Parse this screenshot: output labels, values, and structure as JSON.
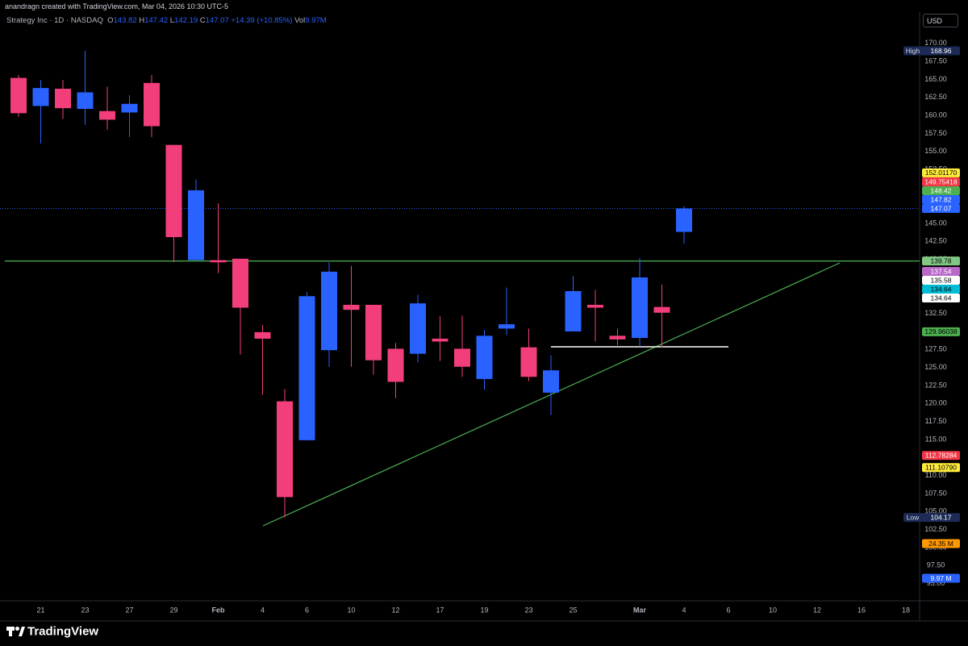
{
  "header": {
    "credit": "anandragn created with TradingView.com, Mar 04, 2026 10:30 UTC-5"
  },
  "currency": "USD",
  "brand": "TradingView",
  "legend": {
    "symbol": "Strategy Inc · 1D · NASDAQ",
    "open": "O",
    "high": "H",
    "low": "L",
    "close": "C",
    "change": "+14.39 (+10.85%)",
    "volume": "Vol",
    "volume_value": "9.97M"
  },
  "chart_data": {
    "type": "candlestick",
    "up_color": "#2962ff",
    "down_color": "#f23f7c",
    "high_label": "High",
    "low_label": "Low",
    "categories": [
      null,
      "21",
      null,
      "23",
      null,
      "27",
      null,
      "29",
      null,
      "Feb",
      null,
      "4",
      null,
      "6",
      null,
      "10",
      null,
      "12",
      null,
      "17",
      null,
      "19",
      null,
      "23",
      null,
      "25",
      null,
      null,
      "Mar",
      null,
      "4",
      null,
      "6",
      null,
      "10",
      null,
      "12",
      null,
      "16",
      null,
      "18"
    ],
    "open": [
      165.2,
      161.3,
      163.7,
      160.9,
      160.6,
      160.4,
      164.5,
      155.9,
      139.9,
      139.9,
      140.1,
      129.9,
      120.3,
      114.9,
      127.4,
      133.7,
      133.7,
      127.6,
      126.9,
      129.0,
      127.6,
      123.4,
      130.4,
      127.8,
      121.5,
      130.0,
      133.7,
      129.4,
      129.1,
      133.4,
      143.82,
      null,
      null,
      null,
      null,
      null,
      null,
      null,
      null,
      null,
      null
    ],
    "high": [
      165.6,
      164.9,
      164.9,
      168.96,
      164.0,
      162.8,
      165.6,
      155.9,
      151.1,
      147.8,
      140.1,
      130.9,
      122.0,
      135.5,
      139.6,
      139.1,
      133.7,
      128.4,
      135.1,
      132.1,
      132.2,
      130.2,
      136.1,
      130.4,
      126.7,
      137.7,
      135.8,
      130.4,
      140.2,
      136.5,
      147.42,
      null,
      null,
      null,
      null,
      null,
      null,
      null,
      null,
      null,
      null
    ],
    "low": [
      159.8,
      156.1,
      159.5,
      158.7,
      158.0,
      157.0,
      157.0,
      139.6,
      139.9,
      138.1,
      126.8,
      121.2,
      104.17,
      114.9,
      125.1,
      125.1,
      124.0,
      120.7,
      125.7,
      125.9,
      123.7,
      121.9,
      129.5,
      123.1,
      118.4,
      130.0,
      128.6,
      128.1,
      127.9,
      127.8,
      142.19,
      null,
      null,
      null,
      null,
      null,
      null,
      null,
      null,
      null,
      null
    ],
    "close": [
      160.3,
      163.8,
      161.0,
      163.2,
      159.4,
      161.6,
      158.5,
      143.1,
      149.6,
      139.6,
      133.3,
      129.0,
      107.0,
      134.9,
      138.3,
      133.0,
      126.0,
      123.0,
      133.9,
      128.6,
      125.1,
      129.4,
      131.0,
      123.7,
      124.6,
      135.6,
      133.3,
      128.9,
      137.5,
      132.6,
      147.07,
      null,
      null,
      null,
      null,
      null,
      null,
      null,
      null,
      null,
      null
    ],
    "ylim": [
      92.6,
      172.1
    ],
    "yticks": [
      {
        "value": 170,
        "label": "170.00"
      },
      {
        "value": 167.5,
        "label": "167.50"
      },
      {
        "value": 165,
        "label": "165.00"
      },
      {
        "value": 162.5,
        "label": "162.50"
      },
      {
        "value": 160,
        "label": "160.00"
      },
      {
        "value": 157.5,
        "label": "157.50"
      },
      {
        "value": 155,
        "label": "155.00"
      },
      {
        "value": 152.5,
        "label": "152.50"
      },
      {
        "value": 150,
        "label": "150.00"
      },
      {
        "value": 147.5,
        "label": "147.50"
      },
      {
        "value": 145,
        "label": "145.00"
      },
      {
        "value": 142.5,
        "label": "142.50"
      },
      {
        "value": 140,
        "label": "140.00"
      },
      {
        "value": 137.5,
        "label": "137.50"
      },
      {
        "value": 135,
        "label": "135.00"
      },
      {
        "value": 132.5,
        "label": "132.50"
      },
      {
        "value": 130,
        "label": "130.00"
      },
      {
        "value": 127.5,
        "label": "127.50"
      },
      {
        "value": 125,
        "label": "125.00"
      },
      {
        "value": 122.5,
        "label": "122.50"
      },
      {
        "value": 120,
        "label": "120.00"
      },
      {
        "value": 117.5,
        "label": "117.50"
      },
      {
        "value": 115,
        "label": "115.00"
      },
      {
        "value": 112.5,
        "label": "112.50"
      },
      {
        "value": 110,
        "label": "110.00"
      },
      {
        "value": 107.5,
        "label": "107.50"
      },
      {
        "value": 105,
        "label": "105.00"
      },
      {
        "value": 102.5,
        "label": "102.50"
      },
      {
        "value": 100,
        "label": "100.00"
      },
      {
        "value": 97.5,
        "label": "97.50"
      },
      {
        "value": 95,
        "label": "95.00"
      }
    ],
    "price_lines": [
      {
        "value": 152.0117,
        "label": "152.01170",
        "color": "#ffeb3b",
        "text_color": "#000000"
      },
      {
        "value": 149.75418,
        "label": "149.75418",
        "color": "#f23645",
        "text_color": "#ffffff"
      },
      {
        "value": 148.42,
        "label": "148.42",
        "color": "#4caf50",
        "text_color": "#ffffff"
      },
      {
        "value": 147.82,
        "label": "147.82",
        "color": "#2962ff",
        "text_color": "#ffffff"
      },
      {
        "value": 139.78,
        "label": "139.78",
        "color": "#81c784",
        "text_color": "#000000",
        "line": true
      },
      {
        "value": 137.54,
        "label": "137.54",
        "color": "#ba68c8",
        "text_color": "#ffffff"
      },
      {
        "value": 135.58,
        "label": "135.58",
        "color": "#ffffff",
        "text_color": "#000000"
      },
      {
        "value": 134.64,
        "label": "134.64",
        "color": "#00bcd4",
        "text_color": "#000000"
      },
      {
        "value": 134.64,
        "label": "134.64",
        "color": "#ffffff",
        "text_color": "#000000"
      },
      {
        "value": 129.96038,
        "label": "129.96038",
        "color": "#4caf50",
        "text_color": "#000000"
      },
      {
        "value": 112.78284,
        "label": "112.78284",
        "color": "#f23645",
        "text_color": "#ffffff"
      },
      {
        "value": 111.1079,
        "label": "111.10790",
        "color": "#ffeb3b",
        "text_color": "#000000"
      }
    ],
    "volume_labels": [
      {
        "label": "24.35 M",
        "color": "#ff9800",
        "text_color": "#000000"
      },
      {
        "label": "9.97 M",
        "color": "#2962ff",
        "text_color": "#ffffff"
      }
    ]
  }
}
